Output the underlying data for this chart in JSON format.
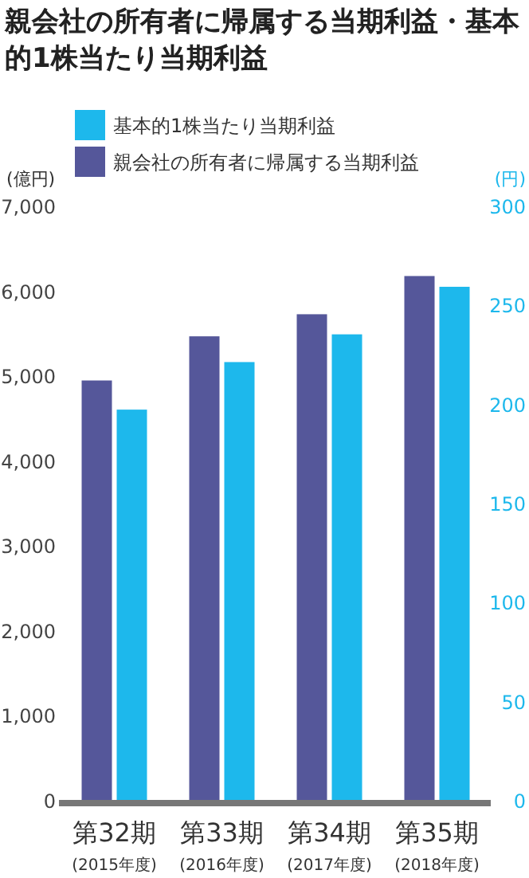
{
  "chart_data": {
    "type": "bar",
    "title": "親会社の所有者に帰属する当期利益・基本的1株当たり当期利益",
    "categories": [
      "第32期\n(2015年度)",
      "第33期\n(2016年度)",
      "第34期\n(2017年度)",
      "第35期\n(2018年度)"
    ],
    "series": [
      {
        "name": "親会社の所有者に帰属する当期利益",
        "color": "#55579a",
        "values": [
          4940,
          5460,
          5720,
          6170
        ]
      },
      {
        "name": "基本的1株当たり当期利益",
        "color": "#1db8ec",
        "axis": "y2",
        "values": [
          197,
          221,
          235,
          259
        ]
      }
    ],
    "ylabel": "(億円)",
    "y2label": "(円)",
    "ylim": [
      0,
      7000
    ],
    "yticks": [
      {
        "value": 0,
        "label": "0"
      },
      {
        "value": 1000,
        "label": "1,000"
      },
      {
        "value": 2000,
        "label": "2,000"
      },
      {
        "value": 3000,
        "label": "3,000"
      },
      {
        "value": 4000,
        "label": "4,000"
      },
      {
        "value": 5000,
        "label": "5,000"
      },
      {
        "value": 6000,
        "label": "6,000"
      },
      {
        "value": 7000,
        "label": "7,000"
      }
    ],
    "y2lim": [
      0,
      300
    ],
    "y2ticks": [
      0,
      50,
      100,
      150,
      200,
      250,
      300
    ],
    "legend": "top",
    "grid": false
  }
}
